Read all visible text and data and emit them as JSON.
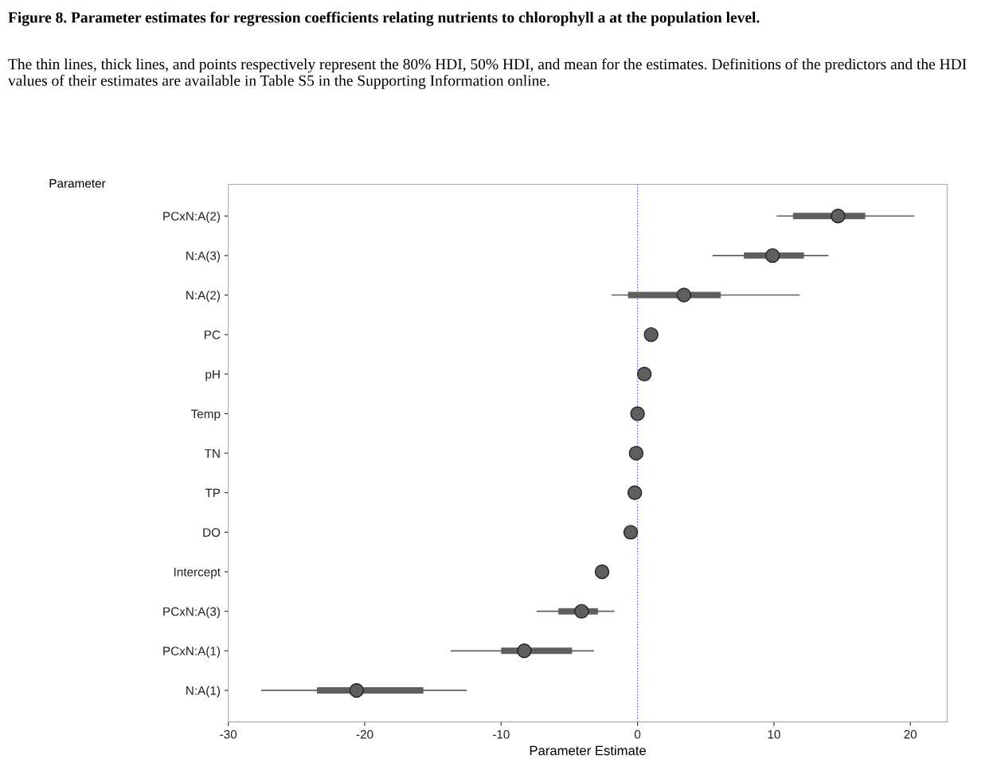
{
  "chart_data": {
    "type": "scatter",
    "orientation": "horizontal",
    "title": "Figure 8. Parameter estimates for regression coefficients relating nutrients to chlorophyll a at the population level.",
    "subtitle": "The thin lines, thick lines, and points respectively represent the 80% HDI, 50% HDI, and mean for the estimates. Definitions of the predictors and the HDI values of their estimates are available in Table S5 in the Supporting Information online.",
    "xlabel": "Parameter Estimate",
    "ylabel": "Parameter",
    "categories": [
      "PCxN:A(2)",
      "N:A(3)",
      "N:A(2)",
      "PC",
      "pH",
      "Temp",
      "TN",
      "TP",
      "DO",
      "Intercept",
      "PCxN:A(3)",
      "PCxN:A(1)",
      "N:A(1)"
    ],
    "xlim": [
      -30,
      22.7
    ],
    "xticks": [
      -30,
      -20,
      -10,
      0,
      10,
      20
    ],
    "series": [
      {
        "type": "bar",
        "color": "#5f5f5f",
        "base": [
          11.4,
          7.8,
          -0.7,
          null,
          null,
          null,
          null,
          null,
          null,
          null,
          -5.8,
          -10.0,
          -23.5
        ],
        "values": [
          5.3,
          4.4,
          6.8,
          null,
          null,
          null,
          null,
          null,
          null,
          null,
          2.9,
          5.2,
          7.8
        ]
      },
      {
        "color": "#5f5f5f",
        "values": [
          14.7,
          9.9,
          3.4,
          1.0,
          0.5,
          0.0,
          -0.1,
          -0.2,
          -0.5,
          -2.6,
          -4.1,
          -8.3,
          -20.6
        ],
        "errors": [
          [
            10.2,
            20.3
          ],
          [
            5.5,
            14.0
          ],
          [
            -1.9,
            11.9
          ],
          null,
          null,
          null,
          null,
          null,
          null,
          null,
          [
            -7.4,
            -1.7
          ],
          [
            -13.7,
            -3.2
          ],
          [
            -27.6,
            -12.5
          ]
        ]
      }
    ],
    "ref_lines": [
      {
        "axis": "x",
        "value": 0,
        "color": "#5555cc",
        "line_style": "dotted"
      }
    ],
    "marker": "circle",
    "grid": false,
    "legend": false
  }
}
